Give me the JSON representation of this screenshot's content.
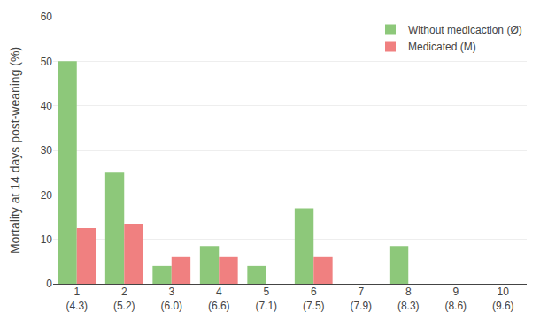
{
  "chart_data": {
    "type": "bar",
    "categories": [
      "1\n(4.3)",
      "2\n(5.2)",
      "3\n(6.0)",
      "4\n(6.6)",
      "5\n(7.1)",
      "6\n(7.5)",
      "7\n(7.9)",
      "8\n(8.3)",
      "9\n(8.6)",
      "10\n(9.6)"
    ],
    "series": [
      {
        "name": "Without medicaction (Ø)",
        "color": "#8DC87A",
        "values": [
          50,
          25,
          4,
          8.5,
          4,
          17,
          0,
          8.5,
          0,
          0
        ]
      },
      {
        "name": "Medicated (M)",
        "color": "#F08080",
        "values": [
          12.5,
          13.5,
          6,
          6,
          0,
          6,
          0,
          0,
          0,
          0
        ]
      }
    ],
    "ylabel": "Mortality at 14 days post-weaning (%)",
    "ylim": [
      0,
      60
    ],
    "yticks": [
      0,
      10,
      20,
      30,
      40,
      50,
      60
    ],
    "grid": true,
    "legend": "upper right"
  }
}
